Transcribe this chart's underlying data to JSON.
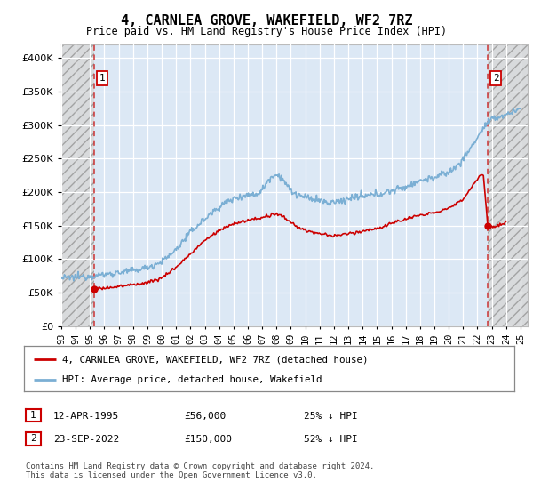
{
  "title": "4, CARNLEA GROVE, WAKEFIELD, WF2 7RZ",
  "subtitle": "Price paid vs. HM Land Registry's House Price Index (HPI)",
  "hpi_color": "#7bafd4",
  "price_color": "#cc0000",
  "marker_color": "#cc0000",
  "dashed_color": "#cc3333",
  "bg_plot_color": "#dce8f5",
  "hatch_color": "#d0d0d0",
  "grid_color": "#ffffff",
  "ylim": [
    0,
    420000
  ],
  "xlim_start": 1993.0,
  "xlim_end": 2025.5,
  "transaction1_x": 1995.28,
  "transaction1_price": 56000,
  "transaction2_x": 2022.72,
  "transaction2_price": 150000,
  "legend_line1": "4, CARNLEA GROVE, WAKEFIELD, WF2 7RZ (detached house)",
  "legend_line2": "HPI: Average price, detached house, Wakefield",
  "footnote1_date": "12-APR-1995",
  "footnote1_price": "£56,000",
  "footnote1_hpi": "25% ↓ HPI",
  "footnote2_date": "23-SEP-2022",
  "footnote2_price": "£150,000",
  "footnote2_hpi": "52% ↓ HPI",
  "copyright": "Contains HM Land Registry data © Crown copyright and database right 2024.\nThis data is licensed under the Open Government Licence v3.0."
}
